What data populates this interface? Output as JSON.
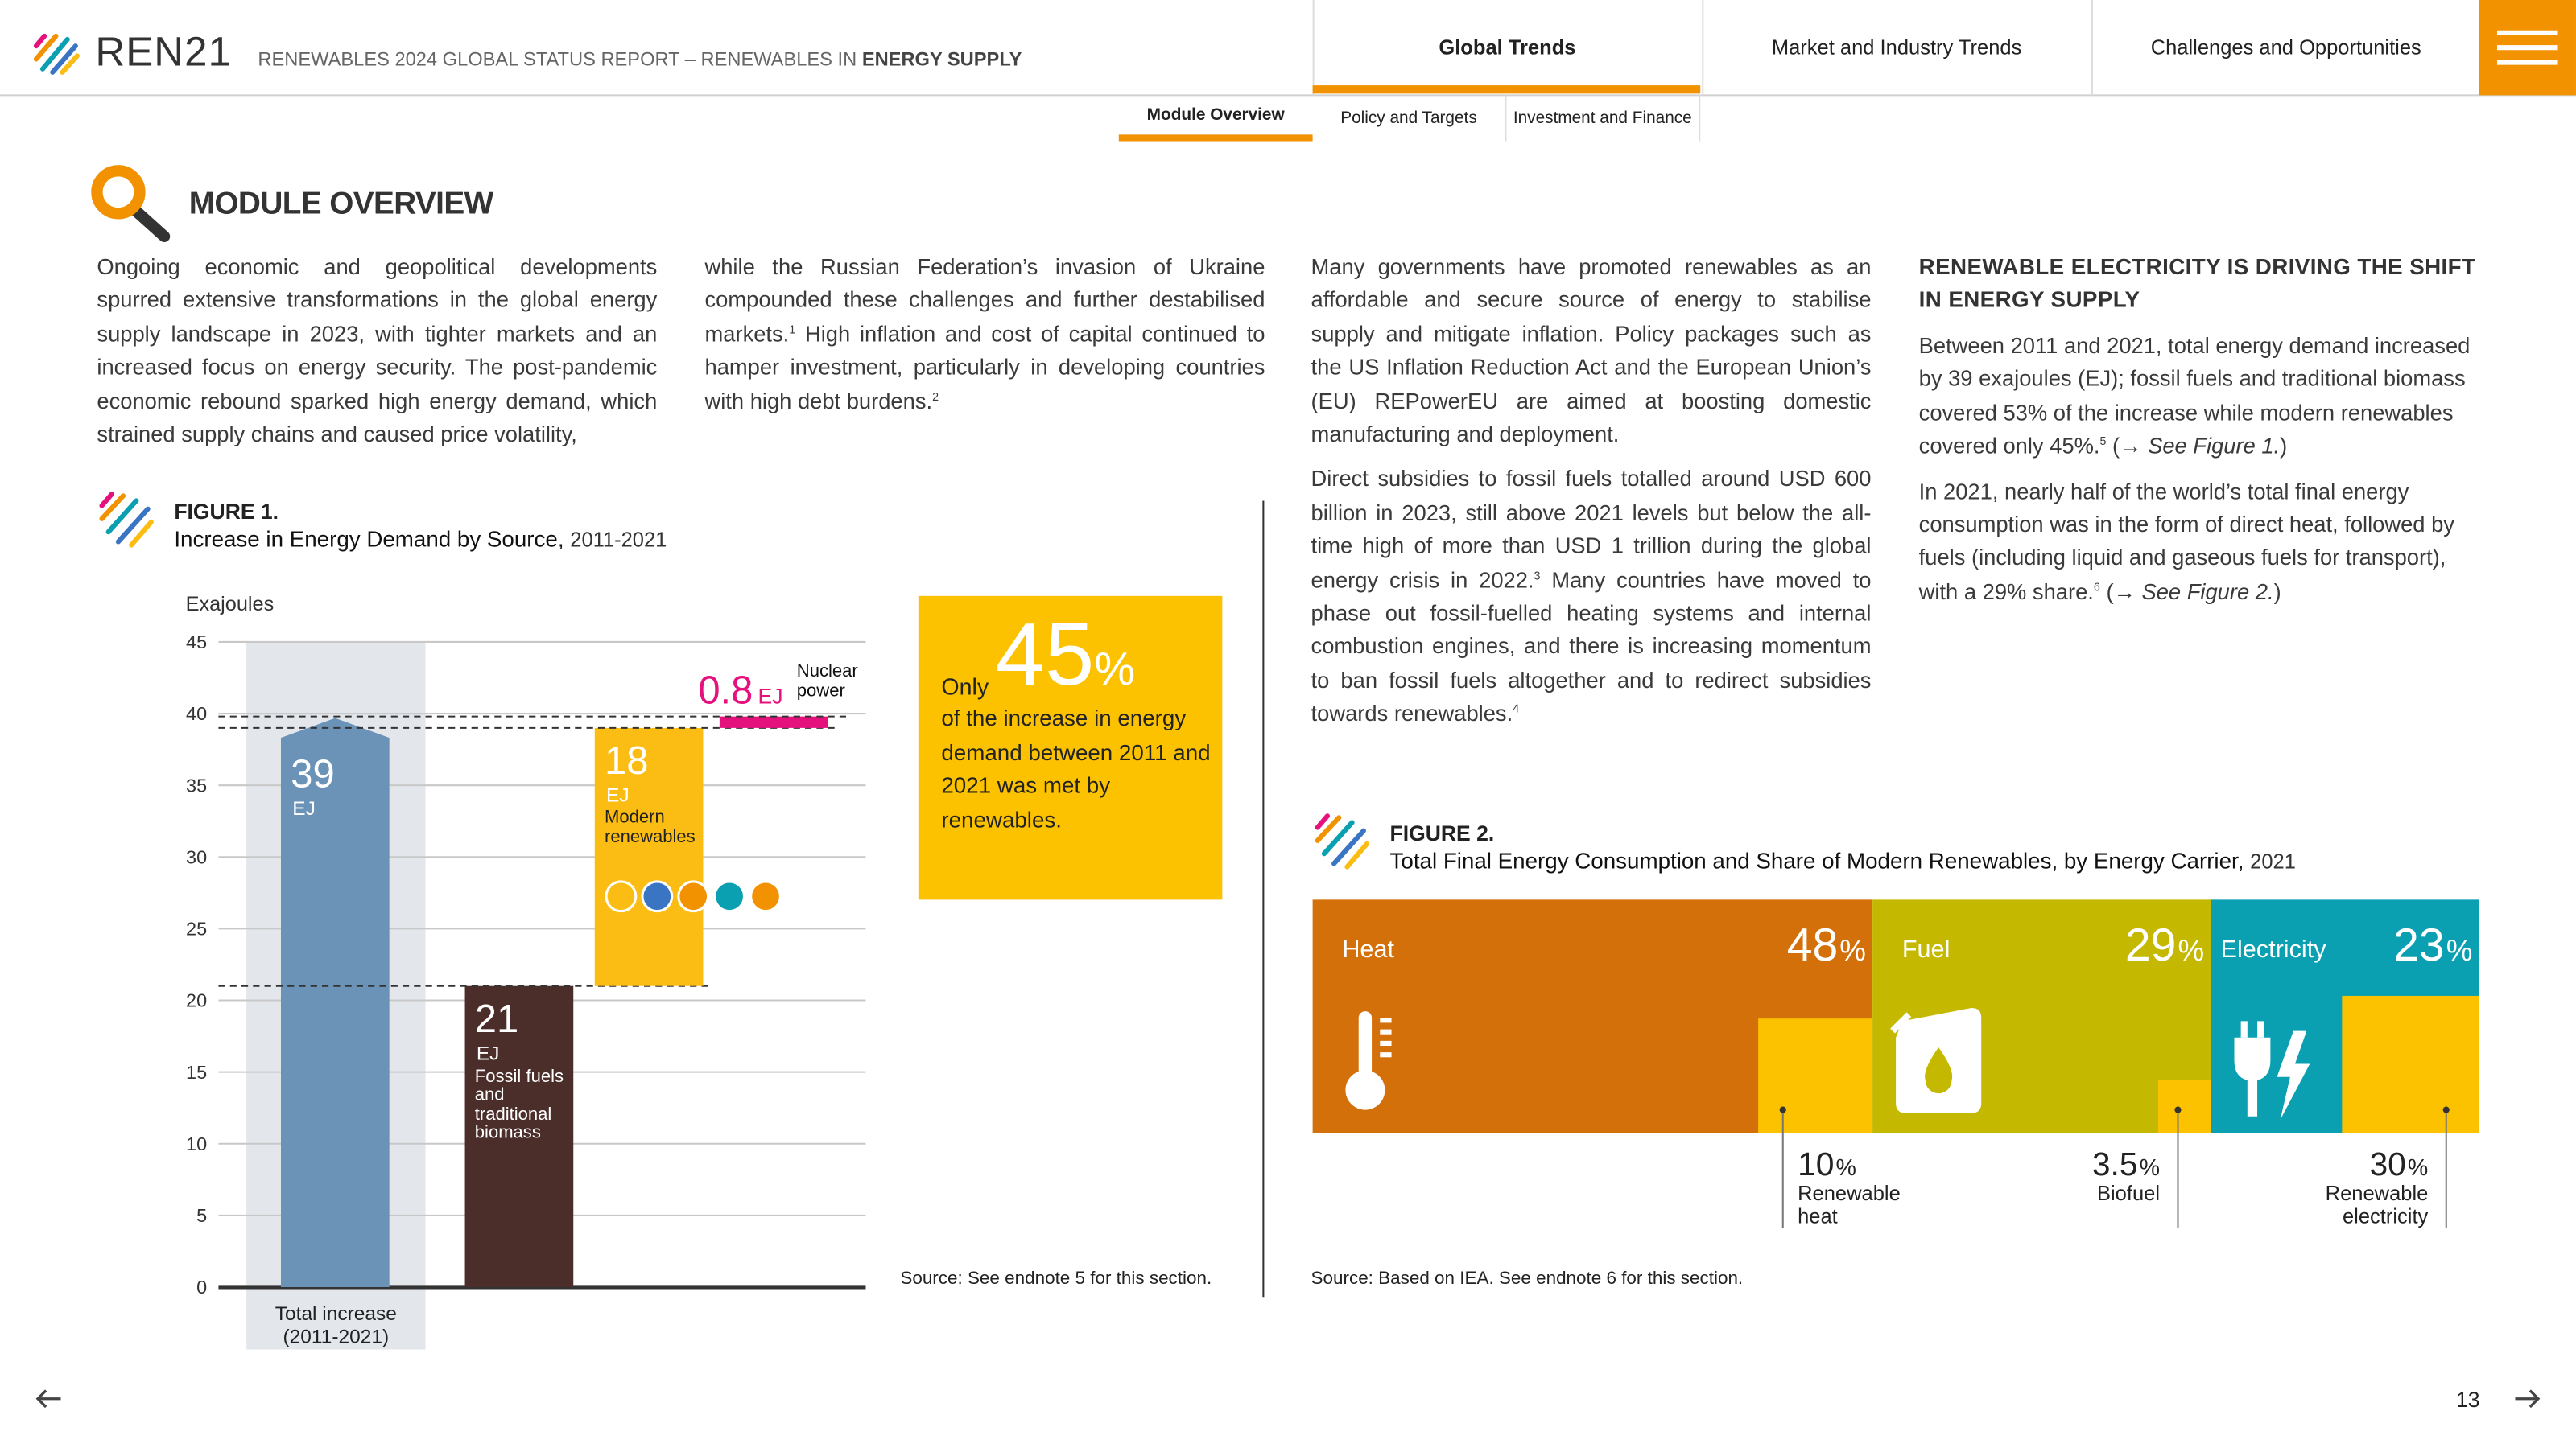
{
  "header": {
    "logo": "REN21",
    "report_title": "RENEWABLES 2024 GLOBAL STATUS REPORT – RENEWABLES IN",
    "report_title_bold": "ENERGY SUPPLY"
  },
  "nav": {
    "tabs": [
      "Global Trends",
      "Market and Industry Trends",
      "Challenges and Opportunities"
    ],
    "subtabs": [
      "Module Overview",
      "Policy and Targets",
      "Investment and Finance"
    ]
  },
  "section_title": "MODULE OVERVIEW",
  "columns": [
    {
      "paragraphs": [
        [
          "Ongoing economic and geopolitical developments spurred extensive transformations in the global energy supply landscape in 2023, with tighter markets and an increased focus on energy security. The post-pandemic economic rebound sparked high energy demand, which strained supply chains and caused price volatility,"
        ]
      ]
    },
    {
      "paragraphs": [
        [
          "while the Russian Federation’s invasion of Ukraine compounded these challenges and further destabilised markets.",
          {
            "sup": "1"
          },
          " High inflation and cost of capital continued to hamper investment, particularly in developing countries with high debt burdens.",
          {
            "sup": "2"
          }
        ]
      ]
    },
    {
      "paragraphs": [
        [
          "Many governments have promoted renewables as an affordable and secure source of energy to stabilise supply and mitigate inflation. Policy packages such as the US Inflation Reduction Act and the European Union’s (EU) REPowerEU are aimed at boosting domestic manufacturing and deployment."
        ],
        [
          "Direct subsidies to fossil fuels totalled around USD 600 billion in 2023, still above 2021 levels but below the all-time high of more than USD 1 trillion during the global energy crisis in 2022.",
          {
            "sup": "3"
          },
          " Many countries have moved to phase out fossil-fuelled heating systems and internal combustion engines, and there is increasing momentum to ban fossil fuels altogether and to redirect subsidies towards renewables.",
          {
            "sup": "4"
          }
        ]
      ]
    },
    {
      "heading": "RENEWABLE ELECTRICITY IS DRIVING THE SHIFT IN ENERGY SUPPLY",
      "paragraphs": [
        [
          "Between 2011 and 2021, total energy demand increased by 39 exajoules (EJ); fossil fuels and traditional biomass covered 53% of the increase while modern renewables covered only 45%.",
          {
            "sup": "5"
          },
          " (→ ",
          {
            "em": "See Figure 1."
          },
          ")"
        ],
        [
          "In 2021, nearly half of the world’s total final energy consumption was in the form of direct heat, followed by fuels (including liquid and gaseous fuels for transport), with a 29% share.",
          {
            "sup": "6"
          },
          " (→ ",
          {
            "em": "See Figure 2."
          },
          ")"
        ]
      ]
    }
  ],
  "chart_data": [
    {
      "type": "waterfall",
      "label": "FIGURE 1.",
      "title": "Increase in Energy Demand by Source,",
      "title_suffix": "2011-2021",
      "y_label": "Exajoules",
      "categories": [
        "Total increase (2011-2021)",
        "Fossil fuels and traditional biomass",
        "Modern renewables",
        "Nuclear power"
      ],
      "measures": [
        "total",
        "relative",
        "relative",
        "relative"
      ],
      "values": [
        39,
        21,
        18,
        0.8
      ],
      "unit": "EJ",
      "colors": [
        "#6b93b8",
        "#4b2d2a",
        "#fbbd13",
        "#e5127d"
      ],
      "ylim": [
        0,
        45
      ],
      "yticks": [
        0,
        5,
        10,
        15,
        20,
        25,
        30,
        35,
        40,
        45
      ],
      "grid": true,
      "callout": {
        "prefix": "Only",
        "value": 45,
        "unit": "%",
        "text": "of the increase in energy demand between 2011 and 2021 was met by renewables."
      },
      "source": "Source: See endnote 5 for this section."
    },
    {
      "type": "proportional-bar",
      "label": "FIGURE 2.",
      "title": "Total Final Energy Consumption and Share of Modern Renewables, by Energy Carrier,",
      "title_suffix": "2021",
      "categories": [
        "Heat",
        "Fuel",
        "Electricity"
      ],
      "values": [
        48,
        29,
        23
      ],
      "unit": "%",
      "colors": [
        "#d4700a",
        "#c4b800",
        "#0aa0b2"
      ],
      "renewable": {
        "names": [
          "Renewable heat",
          "Biofuel",
          "Renewable electricity"
        ],
        "values": [
          10,
          3.5,
          30
        ],
        "color": "#fcc200"
      },
      "source": "Source: Based on IEA. See endnote 6 for this section."
    }
  ],
  "footer": {
    "page": "13"
  }
}
